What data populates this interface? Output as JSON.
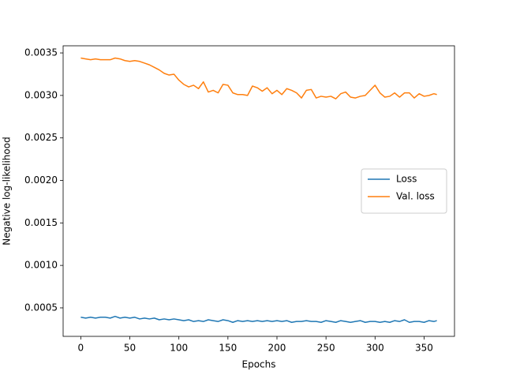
{
  "chart_data": {
    "type": "line",
    "xlabel": "Epochs",
    "ylabel": "Negative log-likelihood",
    "x": [
      0,
      5,
      10,
      15,
      20,
      25,
      30,
      35,
      40,
      45,
      50,
      55,
      60,
      65,
      70,
      75,
      80,
      85,
      90,
      95,
      100,
      105,
      110,
      115,
      120,
      125,
      130,
      135,
      140,
      145,
      150,
      155,
      160,
      165,
      170,
      175,
      180,
      185,
      190,
      195,
      200,
      205,
      210,
      215,
      220,
      225,
      230,
      235,
      240,
      245,
      250,
      255,
      260,
      265,
      270,
      275,
      280,
      285,
      290,
      295,
      300,
      305,
      310,
      315,
      320,
      325,
      330,
      335,
      340,
      345,
      350,
      355,
      360,
      363
    ],
    "series": [
      {
        "name": "Loss",
        "color": "#1f77b4",
        "values": [
          0.00039,
          0.00038,
          0.00039,
          0.00038,
          0.00039,
          0.00039,
          0.00038,
          0.0004,
          0.00038,
          0.00039,
          0.00038,
          0.00039,
          0.00037,
          0.00038,
          0.00037,
          0.00038,
          0.00036,
          0.00037,
          0.00036,
          0.00037,
          0.00036,
          0.00035,
          0.00036,
          0.00034,
          0.00035,
          0.00034,
          0.00036,
          0.00035,
          0.00034,
          0.00036,
          0.00035,
          0.00033,
          0.00035,
          0.00034,
          0.00035,
          0.00034,
          0.00035,
          0.00034,
          0.00035,
          0.00034,
          0.00035,
          0.00034,
          0.00035,
          0.00033,
          0.00034,
          0.00034,
          0.00035,
          0.00034,
          0.00034,
          0.00033,
          0.00035,
          0.00034,
          0.00033,
          0.00035,
          0.00034,
          0.00033,
          0.00034,
          0.00035,
          0.00033,
          0.00034,
          0.00034,
          0.00033,
          0.00034,
          0.00033,
          0.00035,
          0.00034,
          0.00036,
          0.00033,
          0.00034,
          0.00034,
          0.00033,
          0.00035,
          0.00034,
          0.00035
        ]
      },
      {
        "name": "Val. loss",
        "color": "#ff7f0e",
        "values": [
          0.00344,
          0.00343,
          0.00342,
          0.00343,
          0.00342,
          0.00342,
          0.00342,
          0.00344,
          0.00343,
          0.00341,
          0.0034,
          0.00341,
          0.0034,
          0.00338,
          0.00336,
          0.00333,
          0.0033,
          0.00326,
          0.00324,
          0.00325,
          0.00318,
          0.00313,
          0.0031,
          0.00312,
          0.00308,
          0.00316,
          0.00304,
          0.00306,
          0.00303,
          0.00313,
          0.00312,
          0.00303,
          0.00301,
          0.00301,
          0.003,
          0.00311,
          0.00309,
          0.00305,
          0.00309,
          0.00302,
          0.00306,
          0.00301,
          0.00308,
          0.00306,
          0.00303,
          0.00297,
          0.00306,
          0.00307,
          0.00297,
          0.00299,
          0.00298,
          0.00299,
          0.00296,
          0.00302,
          0.00304,
          0.00298,
          0.00297,
          0.00299,
          0.003,
          0.00306,
          0.00312,
          0.00303,
          0.00298,
          0.00299,
          0.00303,
          0.00298,
          0.00303,
          0.00303,
          0.00297,
          0.00302,
          0.00299,
          0.003,
          0.00302,
          0.00301
        ]
      }
    ],
    "xlim": [
      -18,
      381
    ],
    "xticks": [
      0,
      50,
      100,
      150,
      200,
      250,
      300,
      350
    ],
    "ylim": [
      0.000165,
      0.003584
    ],
    "yticks": [
      0.0005,
      {
        "value": 0.001,
        "label": "0.0010"
      },
      0.0015,
      {
        "value": 0.002,
        "label": "0.0020"
      },
      0.0025,
      {
        "value": 0.003,
        "label": "0.0030"
      },
      0.0035
    ],
    "legend": "center right"
  }
}
